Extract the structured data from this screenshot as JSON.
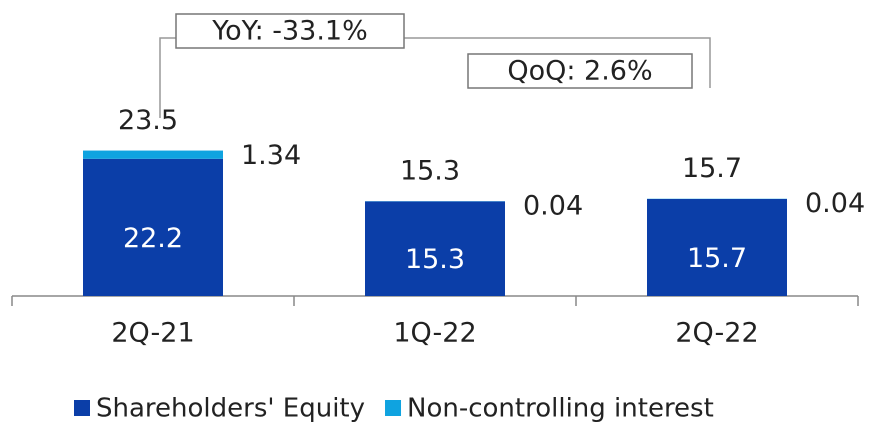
{
  "chart_data": {
    "type": "stacked_bar",
    "categories": [
      "2Q-21",
      "1Q-22",
      "2Q-22"
    ],
    "series": [
      {
        "name": "Shareholders' Equity",
        "color": "#0b3ea8",
        "values": [
          22.2,
          15.3,
          15.7
        ]
      },
      {
        "name": "Non-controlling interest",
        "color": "#0fa3e0",
        "values": [
          1.34,
          0.04,
          0.04
        ]
      }
    ],
    "totals": [
      23.5,
      15.3,
      15.7
    ],
    "annotations": [
      "YoY: -33.1%",
      "QoQ: 2.6%"
    ],
    "ylim": [
      0,
      28
    ],
    "grid": false
  }
}
